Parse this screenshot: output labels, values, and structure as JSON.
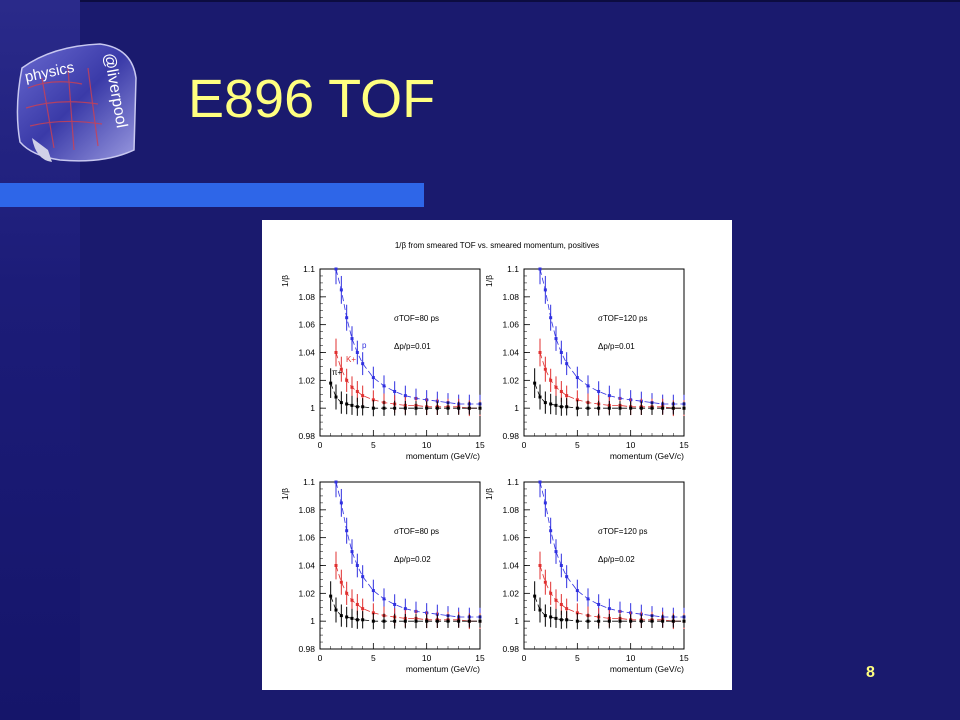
{
  "slide": {
    "title": "E896 TOF",
    "number": "8",
    "logo_text": "physics@liverpool"
  },
  "colors": {
    "background": "#1a1a6e",
    "accent_bar": "#2e66e8",
    "title": "#ffff80",
    "proton": "#3030e0",
    "kaon": "#e03030",
    "pion": "#000000"
  },
  "chart_data": {
    "type": "scatter",
    "title": "1/β from smeared TOF vs. smeared momentum, positives",
    "xlabel": "momentum (GeV/c)",
    "ylabel": "1/β",
    "xlim": [
      0,
      15
    ],
    "ylim": [
      0.98,
      1.1
    ],
    "xticks": [
      "0",
      "5",
      "10",
      "15"
    ],
    "yticks": [
      "0.98",
      "1",
      "1.02",
      "1.04",
      "1.06",
      "1.08",
      "1.1"
    ],
    "grid": false,
    "panels": [
      {
        "sigma_text": "σTOF=80 ps",
        "dp_text": "Δp/p=0.01",
        "labels": {
          "proton": "p",
          "kaon": "K+",
          "pion": "π+"
        },
        "series": [
          {
            "name": "p",
            "x": [
              1.5,
              2,
              2.5,
              3,
              3.5,
              4,
              5,
              6,
              7,
              8,
              9,
              10,
              11,
              12,
              13,
              14,
              15
            ],
            "y": [
              1.1,
              1.085,
              1.065,
              1.05,
              1.04,
              1.032,
              1.022,
              1.016,
              1.012,
              1.009,
              1.007,
              1.006,
              1.005,
              1.004,
              1.003,
              1.003,
              1.003
            ]
          },
          {
            "name": "K+",
            "x": [
              1.5,
              2,
              2.5,
              3,
              3.5,
              4,
              5,
              6,
              7,
              8,
              9,
              10,
              11,
              12,
              13,
              14,
              15
            ],
            "y": [
              1.04,
              1.028,
              1.02,
              1.015,
              1.012,
              1.009,
              1.006,
              1.004,
              1.003,
              1.002,
              1.002,
              1.001,
              1.001,
              1.001,
              1.001,
              1.0,
              1.0
            ]
          },
          {
            "name": "π+",
            "x": [
              1,
              1.5,
              2,
              2.5,
              3,
              3.5,
              4,
              5,
              6,
              7,
              8,
              9,
              10,
              11,
              12,
              13,
              14,
              15
            ],
            "y": [
              1.018,
              1.008,
              1.004,
              1.003,
              1.002,
              1.001,
              1.001,
              1.0,
              1.0,
              1.0,
              1.0,
              1.0,
              1.0,
              1.0,
              1.0,
              1.0,
              1.0,
              1.0
            ]
          }
        ]
      },
      {
        "sigma_text": "σTOF=120 ps",
        "dp_text": "Δp/p=0.01",
        "series": [
          {
            "x": [
              1.5,
              2,
              2.5,
              3,
              3.5,
              4,
              5,
              6,
              7,
              8,
              9,
              10,
              11,
              12,
              13,
              14,
              15
            ],
            "y": [
              1.1,
              1.085,
              1.065,
              1.05,
              1.04,
              1.032,
              1.022,
              1.016,
              1.012,
              1.009,
              1.007,
              1.006,
              1.005,
              1.004,
              1.003,
              1.003,
              1.003
            ]
          },
          {
            "x": [
              1.5,
              2,
              2.5,
              3,
              3.5,
              4,
              5,
              6,
              7,
              8,
              9,
              10,
              11,
              12,
              13,
              14,
              15
            ],
            "y": [
              1.04,
              1.028,
              1.02,
              1.015,
              1.012,
              1.009,
              1.006,
              1.004,
              1.003,
              1.002,
              1.002,
              1.001,
              1.001,
              1.001,
              1.001,
              1.0,
              1.0
            ]
          },
          {
            "x": [
              1,
              1.5,
              2,
              2.5,
              3,
              3.5,
              4,
              5,
              6,
              7,
              8,
              9,
              10,
              11,
              12,
              13,
              14,
              15
            ],
            "y": [
              1.018,
              1.008,
              1.004,
              1.003,
              1.002,
              1.001,
              1.001,
              1.0,
              1.0,
              1.0,
              1.0,
              1.0,
              1.0,
              1.0,
              1.0,
              1.0,
              1.0,
              1.0
            ]
          }
        ]
      },
      {
        "sigma_text": "σTOF=80 ps",
        "dp_text": "Δp/p=0.02",
        "series": [
          {
            "x": [
              1.5,
              2,
              2.5,
              3,
              3.5,
              4,
              5,
              6,
              7,
              8,
              9,
              10,
              11,
              12,
              13,
              14,
              15
            ],
            "y": [
              1.1,
              1.085,
              1.065,
              1.05,
              1.04,
              1.032,
              1.022,
              1.016,
              1.012,
              1.009,
              1.007,
              1.006,
              1.005,
              1.004,
              1.003,
              1.003,
              1.003
            ]
          },
          {
            "x": [
              1.5,
              2,
              2.5,
              3,
              3.5,
              4,
              5,
              6,
              7,
              8,
              9,
              10,
              11,
              12,
              13,
              14,
              15
            ],
            "y": [
              1.04,
              1.028,
              1.02,
              1.015,
              1.012,
              1.009,
              1.006,
              1.004,
              1.003,
              1.002,
              1.002,
              1.001,
              1.001,
              1.001,
              1.001,
              1.0,
              1.0
            ]
          },
          {
            "x": [
              1,
              1.5,
              2,
              2.5,
              3,
              3.5,
              4,
              5,
              6,
              7,
              8,
              9,
              10,
              11,
              12,
              13,
              14,
              15
            ],
            "y": [
              1.018,
              1.008,
              1.004,
              1.003,
              1.002,
              1.001,
              1.001,
              1.0,
              1.0,
              1.0,
              1.0,
              1.0,
              1.0,
              1.0,
              1.0,
              1.0,
              1.0,
              1.0
            ]
          }
        ]
      },
      {
        "sigma_text": "σTOF=120 ps",
        "dp_text": "Δp/p=0.02",
        "series": [
          {
            "x": [
              1.5,
              2,
              2.5,
              3,
              3.5,
              4,
              5,
              6,
              7,
              8,
              9,
              10,
              11,
              12,
              13,
              14,
              15
            ],
            "y": [
              1.1,
              1.085,
              1.065,
              1.05,
              1.04,
              1.032,
              1.022,
              1.016,
              1.012,
              1.009,
              1.007,
              1.006,
              1.005,
              1.004,
              1.003,
              1.003,
              1.003
            ]
          },
          {
            "x": [
              1.5,
              2,
              2.5,
              3,
              3.5,
              4,
              5,
              6,
              7,
              8,
              9,
              10,
              11,
              12,
              13,
              14,
              15
            ],
            "y": [
              1.04,
              1.028,
              1.02,
              1.015,
              1.012,
              1.009,
              1.006,
              1.004,
              1.003,
              1.002,
              1.002,
              1.001,
              1.001,
              1.001,
              1.001,
              1.0,
              1.0
            ]
          },
          {
            "x": [
              1,
              1.5,
              2,
              2.5,
              3,
              3.5,
              4,
              5,
              6,
              7,
              8,
              9,
              10,
              11,
              12,
              13,
              14,
              15
            ],
            "y": [
              1.018,
              1.008,
              1.004,
              1.003,
              1.002,
              1.001,
              1.001,
              1.0,
              1.0,
              1.0,
              1.0,
              1.0,
              1.0,
              1.0,
              1.0,
              1.0,
              1.0,
              1.0
            ]
          }
        ]
      }
    ]
  }
}
